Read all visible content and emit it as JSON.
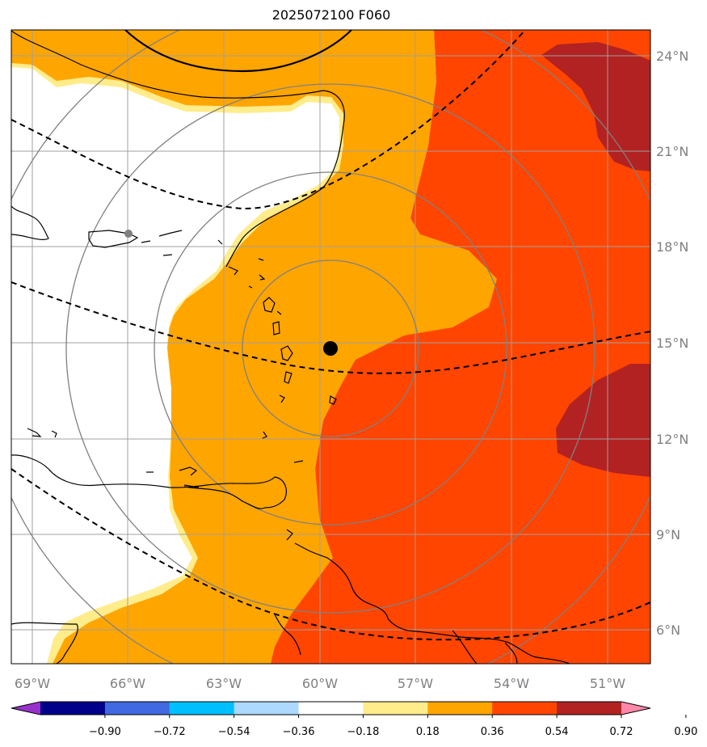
{
  "title": "2025072100 F060",
  "lon_labels": [
    "69°W",
    "66°W",
    "63°W",
    "60°W",
    "57°W",
    "54°W",
    "51°W"
  ],
  "lat_labels": [
    "24°N",
    "21°N",
    "18°N",
    "15°N",
    "12°N",
    "9°N",
    "6°N"
  ],
  "colorbar": {
    "tick_labels": [
      "−0.90",
      "−0.72",
      "−0.54",
      "−0.36",
      "−0.18",
      "0.18",
      "0.36",
      "0.54",
      "0.72",
      "0.90"
    ],
    "colors": [
      "#9932cc",
      "#00008b",
      "#4169e1",
      "#00bfff",
      "#add8ff",
      "#ffffff",
      "#ffec8b",
      "#ffa500",
      "#ff4500",
      "#b22222",
      "#ff88aa"
    ]
  },
  "fill_colors": {
    "light_yellow": "#ffec8b",
    "orange": "#ffa500",
    "orange_red": "#ff4500",
    "dark_red": "#b22222"
  },
  "storm_center": {
    "lon": -59.7,
    "lat": 14.8
  },
  "reference_point": {
    "lon": -66.0,
    "lat": 18.4
  },
  "map_extent": {
    "lon": [
      -69.7,
      -49.7
    ],
    "lat": [
      4.9,
      24.8
    ]
  }
}
